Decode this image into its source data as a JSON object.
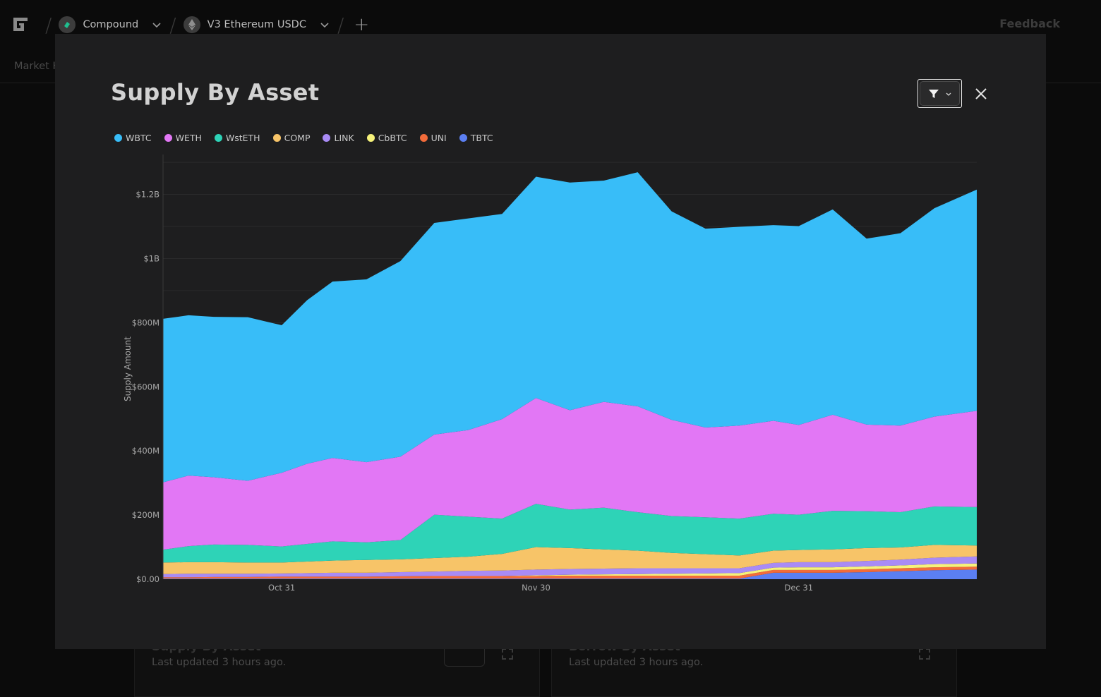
{
  "topbar": {
    "protocol": "Compound",
    "market": "V3 Ethereum USDC",
    "feedback": "Feedback"
  },
  "subnav": {
    "tab": "Market H"
  },
  "background_cards": [
    {
      "title": "Supply By Asset",
      "updated": "Last updated 3 hours ago."
    },
    {
      "title": "Borrow By Asset",
      "updated": "Last updated 3 hours ago."
    }
  ],
  "modal": {
    "title": "Supply By Asset"
  },
  "icons": [
    "logo-icon",
    "compound-coin-icon",
    "ethereum-coin-icon",
    "chevron-down-icon",
    "plus-icon",
    "filter-icon",
    "close-icon",
    "info-icon",
    "expand-icon"
  ],
  "chart_data": {
    "type": "area",
    "stacked": true,
    "title": "Supply By Asset",
    "ylabel": "Supply Amount",
    "xlabel": "",
    "ylim": [
      0,
      1320000000
    ],
    "y_ticks": [
      "$0.00",
      "$200M",
      "$400M",
      "$600M",
      "$800M",
      "$1B",
      "$1.2B"
    ],
    "y_tick_values": [
      0,
      200000000,
      400000000,
      600000000,
      800000000,
      1000000000,
      1200000000
    ],
    "x_range": [
      "2024-10-17",
      "2025-01-21"
    ],
    "x_ticks": [
      {
        "label": "Oct 31",
        "date": "2024-10-31"
      },
      {
        "label": "Nov 30",
        "date": "2024-11-30"
      },
      {
        "label": "Dec 31",
        "date": "2024-12-31"
      }
    ],
    "grid": true,
    "legend_position": "top-left",
    "x": [
      "2024-10-17",
      "2024-10-20",
      "2024-10-23",
      "2024-10-27",
      "2024-10-31",
      "2024-11-03",
      "2024-11-06",
      "2024-11-10",
      "2024-11-14",
      "2024-11-18",
      "2024-11-22",
      "2024-11-26",
      "2024-11-30",
      "2024-12-04",
      "2024-12-08",
      "2024-12-12",
      "2024-12-16",
      "2024-12-20",
      "2024-12-24",
      "2024-12-28",
      "2024-12-31",
      "2025-01-04",
      "2025-01-08",
      "2025-01-12",
      "2025-01-16",
      "2025-01-21"
    ],
    "series": [
      {
        "name": "TBTC",
        "color": "#5b7ff2",
        "values": [
          2000000,
          2000000,
          2000000,
          2000000,
          2000000,
          2000000,
          2000000,
          2000000,
          2000000,
          2000000,
          2000000,
          2000000,
          2000000,
          2000000,
          2000000,
          2000000,
          2000000,
          2000000,
          2000000,
          20000000,
          20000000,
          20000000,
          22000000,
          25000000,
          28000000,
          30000000
        ]
      },
      {
        "name": "UNI",
        "color": "#f26b3a",
        "values": [
          4000000,
          4000000,
          5000000,
          5000000,
          6000000,
          6000000,
          6000000,
          6000000,
          7000000,
          8000000,
          8000000,
          8000000,
          8000000,
          9000000,
          9000000,
          9000000,
          9000000,
          9000000,
          9000000,
          9000000,
          9000000,
          9000000,
          9000000,
          9000000,
          9000000,
          9000000
        ]
      },
      {
        "name": "CbBTC",
        "color": "#f6f27a",
        "values": [
          0,
          0,
          0,
          0,
          0,
          0,
          0,
          0,
          0,
          0,
          0,
          0,
          2000000,
          3000000,
          4000000,
          5000000,
          6000000,
          7000000,
          8000000,
          7000000,
          8000000,
          8000000,
          9000000,
          9000000,
          10000000,
          10000000
        ]
      },
      {
        "name": "LINK",
        "color": "#a98bf5",
        "values": [
          10000000,
          11000000,
          10000000,
          10000000,
          10000000,
          11000000,
          12000000,
          12000000,
          13000000,
          14000000,
          16000000,
          17000000,
          18000000,
          18000000,
          18000000,
          18000000,
          17000000,
          16000000,
          15000000,
          15000000,
          16000000,
          16000000,
          17000000,
          18000000,
          20000000,
          22000000
        ]
      },
      {
        "name": "COMP",
        "color": "#f7c468",
        "values": [
          36000000,
          36000000,
          36000000,
          35000000,
          34000000,
          36000000,
          38000000,
          40000000,
          40000000,
          42000000,
          44000000,
          52000000,
          70000000,
          65000000,
          60000000,
          55000000,
          48000000,
          44000000,
          40000000,
          38000000,
          38000000,
          40000000,
          40000000,
          38000000,
          40000000,
          34000000
        ]
      },
      {
        "name": "WstETH",
        "color": "#2ed3b7",
        "values": [
          40000000,
          50000000,
          55000000,
          55000000,
          50000000,
          55000000,
          60000000,
          55000000,
          60000000,
          135000000,
          125000000,
          110000000,
          135000000,
          120000000,
          130000000,
          120000000,
          115000000,
          115000000,
          115000000,
          115000000,
          110000000,
          120000000,
          115000000,
          110000000,
          120000000,
          120000000
        ]
      },
      {
        "name": "WETH",
        "color": "#e277f5",
        "values": [
          210000000,
          220000000,
          210000000,
          200000000,
          230000000,
          250000000,
          260000000,
          250000000,
          260000000,
          250000000,
          270000000,
          310000000,
          330000000,
          310000000,
          330000000,
          330000000,
          300000000,
          280000000,
          290000000,
          290000000,
          280000000,
          300000000,
          270000000,
          270000000,
          280000000,
          300000000
        ]
      },
      {
        "name": "WBTC",
        "color": "#38bdf8",
        "values": [
          510000000,
          500000000,
          500000000,
          510000000,
          460000000,
          510000000,
          550000000,
          570000000,
          610000000,
          660000000,
          660000000,
          640000000,
          690000000,
          710000000,
          690000000,
          730000000,
          650000000,
          620000000,
          620000000,
          610000000,
          620000000,
          640000000,
          580000000,
          600000000,
          650000000,
          690000000
        ]
      }
    ]
  }
}
